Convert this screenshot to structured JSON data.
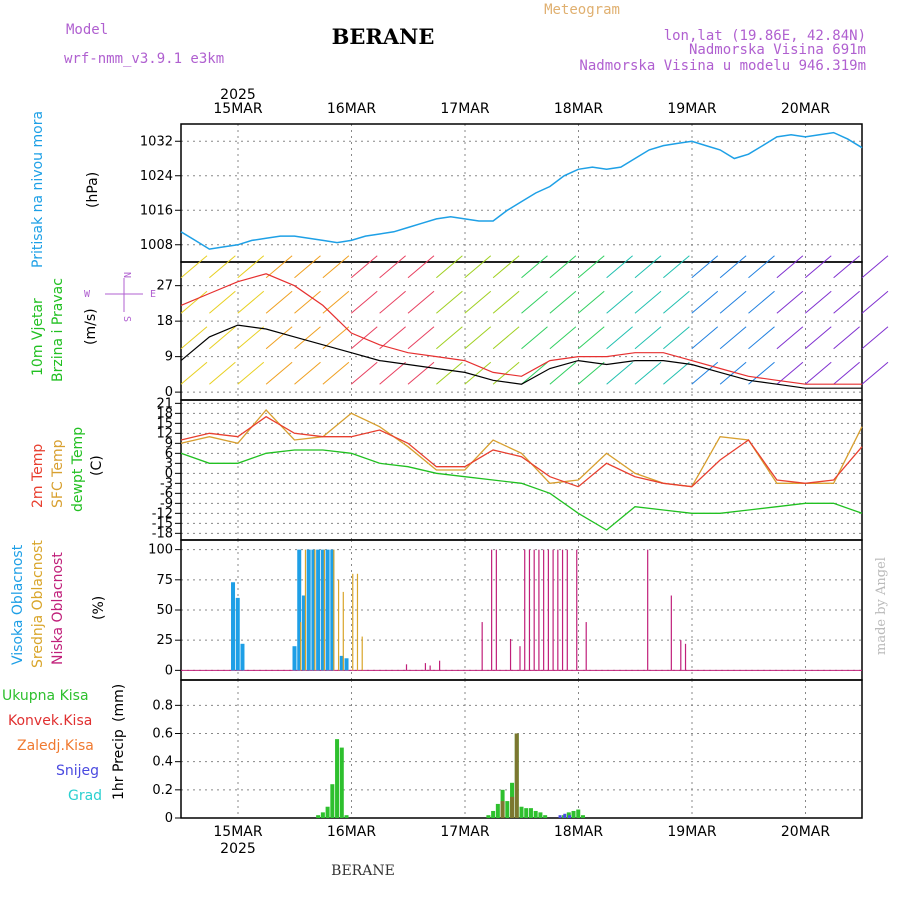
{
  "header": {
    "model_label": "Model",
    "model_name": "wrf-nmm_v3.9.1 e3km",
    "station": "BERANE",
    "meteogram": "Meteogram",
    "lonlat": "lon,lat (19.86E, 42.84N)",
    "altitude": "Nadmorska Visina 691m",
    "model_altitude": "Nadmorska Visina u modelu 946.319m",
    "footer_station": "BERANE",
    "credit": "made by Angel"
  },
  "colors": {
    "pressure": "#1ea0e6",
    "wind_speed": "#000000",
    "gust": "#e63030",
    "t2m": "#e84030",
    "sfc": "#d8a030",
    "dewpt": "#22c022",
    "high_cloud": "#1e9fe6",
    "mid_cloud": "#d9a52a",
    "low_cloud": "#c0207a",
    "total_precip": "#2ec02e",
    "conv_precip": "#e03030",
    "frozen_precip": "#f07a30",
    "snow": "#4a4ae0",
    "hail": "#2ad0d0"
  },
  "chart_data": {
    "type": "meteogram",
    "days": [
      "15MAR",
      "16MAR",
      "17MAR",
      "18MAR",
      "19MAR",
      "20MAR"
    ],
    "year": "2025",
    "x_range_hours": [
      0,
      144
    ],
    "panels": {
      "pressure": {
        "ylabel": "Pritisak na nivou mora",
        "unit": "(hPa)",
        "ylim": [
          1004,
          1036
        ],
        "ticks": [
          1008,
          1016,
          1024,
          1032
        ],
        "x": [
          0,
          3,
          6,
          9,
          12,
          15,
          18,
          21,
          24,
          27,
          30,
          33,
          36,
          39,
          42,
          45,
          48,
          51,
          54,
          57,
          60,
          63,
          66,
          69,
          72,
          75,
          78,
          81,
          84,
          87,
          90,
          93,
          96,
          99,
          102,
          105,
          108,
          111,
          114,
          117,
          120,
          123,
          126,
          129,
          132,
          135,
          138,
          141,
          144
        ],
        "values": [
          1011,
          1009,
          1007,
          1007.5,
          1008,
          1009,
          1009.5,
          1010,
          1010,
          1009.5,
          1009,
          1008.5,
          1009,
          1010,
          1010.5,
          1011,
          1012,
          1013,
          1014,
          1014.5,
          1014,
          1013.5,
          1013.5,
          1016,
          1018,
          1020,
          1021.5,
          1024,
          1025.5,
          1026,
          1025.5,
          1026,
          1028,
          1030,
          1031,
          1031.5,
          1032,
          1031,
          1030,
          1028,
          1029,
          1031,
          1033,
          1033.5,
          1033,
          1033.5,
          1034,
          1032.5,
          1030.5
        ]
      },
      "wind": {
        "ylabel1": "10m Vjetar",
        "ylabel2": "Brzina i Pravac",
        "unit": "(m/s)",
        "ylim": [
          -2,
          33
        ],
        "ticks": [
          0,
          9,
          18,
          27
        ],
        "compass": {
          "n": "N",
          "e": "E",
          "w": "W",
          "s": "S"
        },
        "x": [
          0,
          6,
          12,
          18,
          24,
          30,
          36,
          42,
          48,
          54,
          60,
          66,
          72,
          78,
          84,
          90,
          96,
          102,
          108,
          114,
          120,
          126,
          132,
          138,
          144
        ],
        "speed": [
          8,
          14,
          17,
          16,
          14,
          12,
          10,
          8,
          7,
          6,
          5,
          3,
          2,
          6,
          8,
          7,
          8,
          8,
          7,
          5,
          3,
          2,
          1,
          1,
          1
        ],
        "gust": [
          22,
          25,
          28,
          30,
          27,
          22,
          15,
          12,
          10,
          9,
          8,
          5,
          4,
          8,
          9,
          9,
          10,
          10,
          8,
          6,
          4,
          3,
          2,
          2,
          2
        ]
      },
      "temperature": {
        "ylabel1": "2m Temp",
        "ylabel2": "SFC Temp",
        "ylabel3": "dewpt Temp",
        "unit": "(C)",
        "ylim": [
          -20,
          22
        ],
        "ticks": [
          21,
          18,
          15,
          12,
          9,
          6,
          3,
          0,
          -3,
          -6,
          -9,
          -12,
          -15,
          -18
        ],
        "x": [
          0,
          6,
          12,
          18,
          24,
          30,
          36,
          42,
          48,
          54,
          60,
          66,
          72,
          78,
          84,
          90,
          96,
          102,
          108,
          114,
          120,
          126,
          132,
          138,
          144
        ],
        "t2m": [
          10,
          12,
          11,
          17,
          12,
          11,
          11,
          13,
          9,
          2,
          2,
          7,
          5,
          -1,
          -4,
          3,
          -1,
          -3,
          -4,
          4,
          10,
          -2,
          -3,
          -2,
          8
        ],
        "sfc": [
          9,
          11,
          9,
          19,
          10,
          11,
          18,
          14,
          8,
          1,
          1,
          10,
          6,
          -3,
          -2,
          6,
          0,
          -3,
          -4,
          11,
          10,
          -3,
          -3,
          -3,
          14
        ],
        "dewpt": [
          6,
          3,
          3,
          6,
          7,
          7,
          6,
          3,
          2,
          0,
          -1,
          -2,
          -3,
          -6,
          -12,
          -17,
          -10,
          -11,
          -12,
          -12,
          -11,
          -10,
          -9,
          -9,
          -12
        ]
      },
      "cloud": {
        "ylabel1": "Visoka Oblacnost",
        "ylabel2": "Srednja Oblacnost",
        "ylabel3": "Niska Oblacnost",
        "unit": "(%)",
        "ylim": [
          -8,
          108
        ],
        "ticks": [
          0,
          25,
          50,
          75,
          100
        ],
        "high": [
          [
            11,
            73
          ],
          [
            12,
            60
          ],
          [
            13,
            22
          ],
          [
            24,
            20
          ],
          [
            25,
            100
          ],
          [
            26,
            62
          ],
          [
            27,
            100
          ],
          [
            28,
            100
          ],
          [
            29,
            100
          ],
          [
            30,
            100
          ],
          [
            31,
            100
          ],
          [
            32,
            100
          ],
          [
            34,
            12
          ],
          [
            35,
            10
          ]
        ],
        "mid": [
          [
            25,
            40
          ],
          [
            26,
            100
          ],
          [
            28,
            100
          ],
          [
            30,
            100
          ],
          [
            32,
            100
          ],
          [
            33,
            75
          ],
          [
            34,
            65
          ],
          [
            36,
            80
          ],
          [
            37,
            80
          ],
          [
            38,
            28
          ]
        ],
        "low": [
          [
            48,
            5
          ],
          [
            52,
            6
          ],
          [
            53,
            4
          ],
          [
            55,
            8
          ],
          [
            64,
            40
          ],
          [
            66,
            100
          ],
          [
            67,
            100
          ],
          [
            70,
            26
          ],
          [
            72,
            20
          ],
          [
            73,
            100
          ],
          [
            74,
            100
          ],
          [
            75,
            100
          ],
          [
            76,
            100
          ],
          [
            77,
            100
          ],
          [
            78,
            100
          ],
          [
            79,
            100
          ],
          [
            80,
            100
          ],
          [
            81,
            100
          ],
          [
            82,
            100
          ],
          [
            84,
            100
          ],
          [
            86,
            40
          ],
          [
            99,
            100
          ],
          [
            104,
            62
          ],
          [
            106,
            25
          ],
          [
            107,
            22
          ]
        ]
      },
      "precip": {
        "ylabel": "1hr Precip",
        "unit": "(mm)",
        "ylim": [
          0,
          0.98
        ],
        "ticks": [
          0,
          0.2,
          0.4,
          0.6,
          0.8
        ],
        "total": [
          [
            29,
            0.02
          ],
          [
            30,
            0.04
          ],
          [
            31,
            0.08
          ],
          [
            32,
            0.24
          ],
          [
            33,
            0.56
          ],
          [
            34,
            0.5
          ],
          [
            35,
            0.02
          ],
          [
            65,
            0.02
          ],
          [
            66,
            0.05
          ],
          [
            67,
            0.1
          ],
          [
            68,
            0.2
          ],
          [
            69,
            0.12
          ],
          [
            70,
            0.25
          ],
          [
            71,
            0.6
          ],
          [
            72,
            0.08
          ],
          [
            73,
            0.07
          ],
          [
            74,
            0.07
          ],
          [
            75,
            0.05
          ],
          [
            76,
            0.04
          ],
          [
            77,
            0.02
          ],
          [
            81,
            0.02
          ],
          [
            82,
            0.04
          ],
          [
            83,
            0.05
          ],
          [
            84,
            0.06
          ],
          [
            85,
            0.02
          ]
        ],
        "conv": [
          [
            68,
            0.12
          ],
          [
            70,
            0.15
          ],
          [
            71,
            0.6
          ]
        ],
        "snow": [
          [
            81,
            0.02
          ],
          [
            82,
            0.03
          ],
          [
            83,
            0.02
          ]
        ]
      }
    },
    "legend_precip": [
      "Ukupna Kisa",
      "Konvek.Kisa",
      "Zaledj.Kisa",
      "Snijeg",
      "Grad"
    ]
  }
}
